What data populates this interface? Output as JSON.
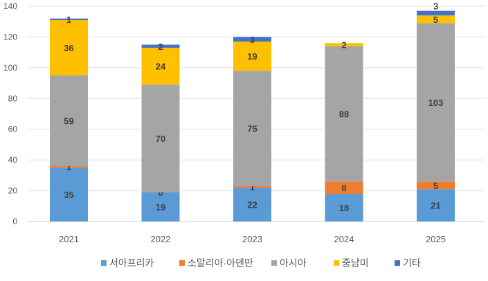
{
  "chart_data": {
    "type": "bar",
    "stacked": true,
    "categories": [
      "2021",
      "2022",
      "2023",
      "2024",
      "2025"
    ],
    "ylim": [
      0,
      140
    ],
    "yticks": [
      0,
      20,
      40,
      60,
      80,
      100,
      120,
      140
    ],
    "grid": true,
    "legend_position": "bottom",
    "series": [
      {
        "name": "서아프리카",
        "color": "#5B9BD5",
        "values": [
          35,
          19,
          22,
          18,
          21
        ]
      },
      {
        "name": "소말리아·아덴만",
        "color": "#ED7D31",
        "values": [
          1,
          0,
          1,
          8,
          5
        ]
      },
      {
        "name": "아시아",
        "color": "#A5A5A5",
        "values": [
          59,
          70,
          75,
          88,
          103
        ]
      },
      {
        "name": "중남미",
        "color": "#FFC000",
        "values": [
          36,
          24,
          19,
          2,
          5
        ]
      },
      {
        "name": "기타",
        "color": "#4472C4",
        "values": [
          1,
          2,
          3,
          null,
          3
        ]
      }
    ]
  }
}
